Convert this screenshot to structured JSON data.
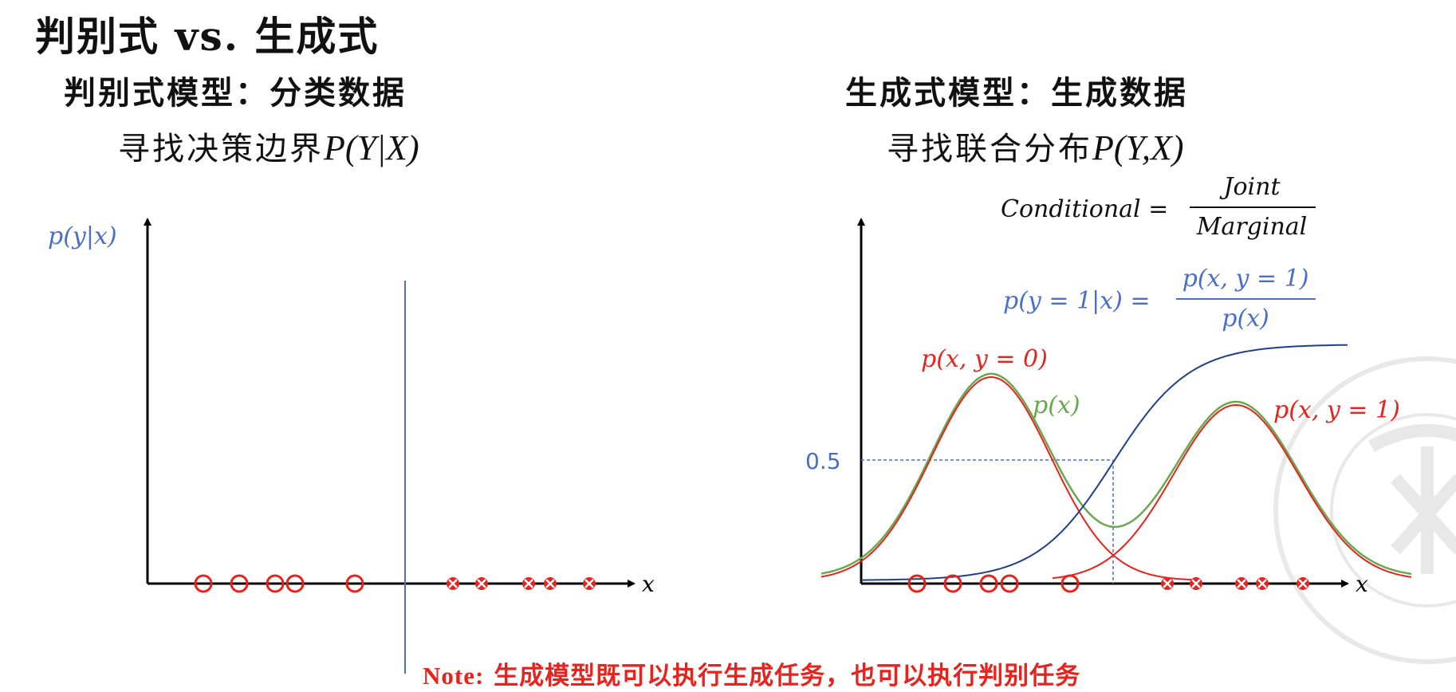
{
  "title": "判别式 vs. 生成式",
  "left_panel": {
    "heading": "判别式模型：分类数据",
    "subheading_text": "寻找决策边界",
    "subheading_math": "P(Y|X)",
    "y_axis_label": "p(y|x)",
    "x_axis_label": "x",
    "class0_markers_x": [
      255,
      300,
      345,
      370,
      445
    ],
    "class1_markers_x": [
      568,
      604,
      663,
      690,
      739
    ],
    "decision_boundary_x": 508
  },
  "right_panel": {
    "heading": "生成式模型：生成数据",
    "subheading_text": "寻找联合分布",
    "subheading_math": "P(Y,X)",
    "formula_lhs": "Conditional =",
    "formula_num": "Joint",
    "formula_den": "Marginal",
    "bayes_lhs": "p(y = 1|x) =",
    "bayes_num": "p(x, y = 1)",
    "bayes_den": "p(x)",
    "label_joint0": "p(x, y = 0)",
    "label_px": "p(x)",
    "label_joint1": "p(x, y = 1)",
    "label_half": "0.5",
    "x_axis_label": "x",
    "class0_markers_x": [
      1150,
      1195,
      1240,
      1266,
      1342
    ],
    "class1_markers_x": [
      1464,
      1500,
      1557,
      1583,
      1634
    ]
  },
  "note": {
    "prefix": "Note:",
    "text": "生成模型既可以执行生成任务，也可以执行判别任务"
  },
  "colors": {
    "class0": "#e8221c",
    "class1": "#e8221c",
    "boundary": "#4a6fc8",
    "posterior_curve": "#1f3f8a",
    "marginal_curve": "#6aa84f",
    "joint_curve": "#e8221c",
    "formula_blue": "#4a6fc8",
    "note": "#e8221c"
  }
}
